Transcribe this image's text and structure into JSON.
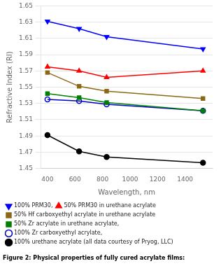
{
  "chart_data": {
    "type": "line",
    "x": [
      400,
      630,
      830,
      1530
    ],
    "series": [
      {
        "name": "100% PRM30,",
        "color": "#0000FF",
        "marker": "triangle_down",
        "values": [
          1.631,
          1.622,
          1.612,
          1.597
        ]
      },
      {
        "name": "50% PRM30 in urethane acrylate",
        "color": "#FF0000",
        "marker": "triangle_up",
        "values": [
          1.575,
          1.57,
          1.562,
          1.57
        ]
      },
      {
        "name": "50% Hf carboxyethyl acrylate in urethane acrylate",
        "color": "#8B6914",
        "marker": "square",
        "values": [
          1.568,
          1.551,
          1.545,
          1.536
        ]
      },
      {
        "name": "50% Zr acrylate in urethane acrylate,",
        "color": "#008000",
        "marker": "square",
        "values": [
          1.542,
          1.537,
          1.531,
          1.521
        ]
      },
      {
        "name": "100% Zr carboxyethyl acrylate,",
        "color": "#0000CC",
        "marker": "open_circle",
        "values": [
          1.535,
          1.533,
          1.529,
          1.521
        ]
      },
      {
        "name": "100% urethane acrylate (all data courtesy of Pryog, LLC)",
        "color": "#000000",
        "marker": "circle",
        "values": [
          1.491,
          1.471,
          1.464,
          1.457
        ]
      }
    ],
    "xlabel": "Wavelength, nm",
    "ylabel": "Refractive Index (RI)",
    "xlim": [
      350,
      1600
    ],
    "ylim": [
      1.45,
      1.65
    ],
    "xticks": [
      400,
      600,
      800,
      1000,
      1200,
      1400
    ],
    "yticks": [
      1.45,
      1.47,
      1.49,
      1.51,
      1.53,
      1.55,
      1.57,
      1.59,
      1.61,
      1.63,
      1.65
    ],
    "grid": "y",
    "legend": "bottom",
    "annotations": [
      "Figure 2: Physical properties of fully cured acrylate films:"
    ]
  }
}
